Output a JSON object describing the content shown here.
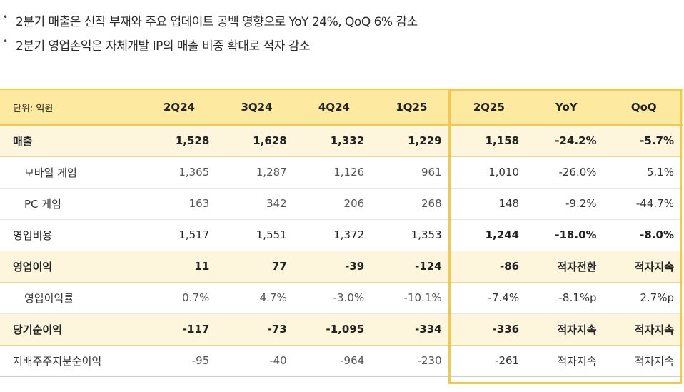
{
  "bullets": [
    "2분기 매출은 신작 부재와 주요 업데이트 공백 영향으로 YoY 24%, QoQ 6% 감소",
    "2분기 영업손익은 자체개발 IP의 매출 비중 확대로 적자 감소"
  ],
  "bullet_marker": "•",
  "table": {
    "unit_label": "단위: 억원",
    "columns": [
      "2Q24",
      "3Q24",
      "4Q24",
      "1Q25",
      "2Q25",
      "YoY",
      "QoQ"
    ],
    "rows": [
      {
        "label": "매출",
        "values": [
          "1,528",
          "1,628",
          "1,332",
          "1,229",
          "1,158",
          "-24.2%",
          "-5.7%"
        ]
      },
      {
        "label": "모바일 게임",
        "values": [
          "1,365",
          "1,287",
          "1,126",
          "961",
          "1,010",
          "-26.0%",
          "5.1%"
        ]
      },
      {
        "label": "PC 게임",
        "values": [
          "163",
          "342",
          "206",
          "268",
          "148",
          "-9.2%",
          "-44.7%"
        ]
      },
      {
        "label": "영업비용",
        "values": [
          "1,517",
          "1,551",
          "1,372",
          "1,353",
          "1,244",
          "-18.0%",
          "-8.0%"
        ]
      },
      {
        "label": "영업이익",
        "values": [
          "11",
          "77",
          "-39",
          "-124",
          "-86",
          "적자전환",
          "적자지속"
        ]
      },
      {
        "label": "영업이익률",
        "values": [
          "0.7%",
          "4.7%",
          "-3.0%",
          "-10.1%",
          "-7.4%",
          "-8.1%p",
          "2.7%p"
        ]
      },
      {
        "label": "당기순이익",
        "values": [
          "-117",
          "-73",
          "-1,095",
          "-334",
          "-336",
          "적자지속",
          "적자지속"
        ]
      },
      {
        "label": "지배주주지분순이익",
        "values": [
          "-95",
          "-40",
          "-964",
          "-230",
          "-261",
          "적자지속",
          "적자지속"
        ]
      }
    ]
  },
  "colors": {
    "header_bg": "#fde9a0",
    "highlight_row_bg": "#fdf5dc",
    "accent_border": "#f6c945"
  }
}
